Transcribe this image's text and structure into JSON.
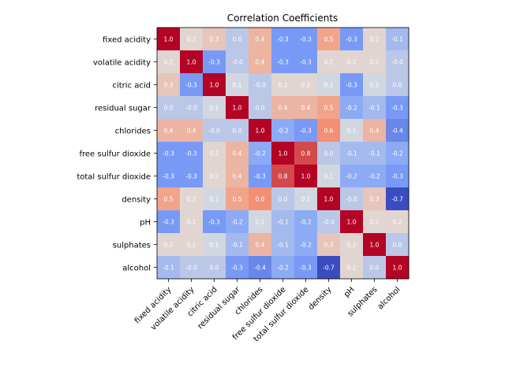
{
  "chart_data": {
    "type": "heatmap",
    "title": "Correlation Coefficients",
    "colormap": "coolwarm",
    "value_range": [
      -0.7,
      1.0
    ],
    "labels": [
      "fixed acidity",
      "volatile acidity",
      "citric acid",
      "residual sugar",
      "chlorides",
      "free sulfur dioxide",
      "total sulfur dioxide",
      "density",
      "pH",
      "sulphates",
      "alcohol"
    ],
    "matrix": [
      [
        1.0,
        0.2,
        0.3,
        0.0,
        0.4,
        -0.3,
        -0.3,
        0.5,
        -0.3,
        0.2,
        -0.1
      ],
      [
        0.2,
        1.0,
        -0.3,
        -0.0,
        0.4,
        -0.3,
        -0.3,
        0.2,
        0.2,
        0.2,
        -0.0
      ],
      [
        0.3,
        -0.3,
        1.0,
        0.1,
        -0.0,
        0.2,
        0.2,
        0.1,
        -0.3,
        0.1,
        0.0
      ],
      [
        0.0,
        -0.0,
        0.1,
        1.0,
        0.0,
        0.4,
        0.4,
        0.5,
        -0.2,
        -0.1,
        -0.3
      ],
      [
        0.4,
        0.4,
        -0.0,
        0.0,
        1.0,
        -0.2,
        -0.3,
        0.6,
        0.1,
        0.4,
        -0.4
      ],
      [
        -0.3,
        -0.3,
        0.2,
        0.4,
        -0.2,
        1.0,
        0.8,
        0.0,
        -0.1,
        -0.1,
        -0.2
      ],
      [
        -0.3,
        -0.3,
        0.2,
        0.4,
        -0.3,
        0.8,
        1.0,
        0.1,
        -0.2,
        -0.2,
        -0.3
      ],
      [
        0.5,
        0.2,
        0.1,
        0.5,
        0.6,
        0.0,
        0.1,
        1.0,
        -0.0,
        0.3,
        -0.7
      ],
      [
        -0.3,
        0.2,
        -0.3,
        -0.2,
        0.1,
        -0.1,
        -0.2,
        -0.0,
        1.0,
        0.2,
        0.2
      ],
      [
        0.2,
        0.2,
        0.1,
        -0.1,
        0.4,
        -0.1,
        -0.2,
        0.3,
        0.2,
        1.0,
        0.0
      ],
      [
        -0.1,
        -0.0,
        0.0,
        -0.3,
        -0.4,
        -0.2,
        -0.3,
        -0.7,
        0.2,
        0.0,
        1.0
      ]
    ]
  }
}
